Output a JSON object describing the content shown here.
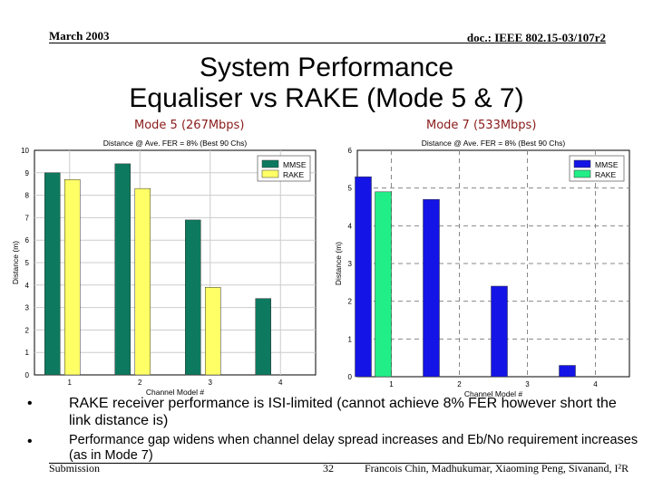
{
  "header": {
    "date": "March 2003",
    "doc": "doc.: IEEE 802.15-03/107r2"
  },
  "title": {
    "line1": "System Performance",
    "line2": "Equaliser vs RAKE (Mode 5 & 7)"
  },
  "mode_labels": {
    "left": "Mode 5 (267Mbps)",
    "right": "Mode 7 (533Mbps)"
  },
  "chart_data": [
    {
      "type": "bar",
      "title": "Distance @ Ave. FER = 8% (Best 90 Chs)",
      "xlabel": "Channel Model #",
      "ylabel": "Distance (m)",
      "categories": [
        "1",
        "2",
        "3",
        "4"
      ],
      "ylim": [
        0,
        10
      ],
      "yticks": [
        "0",
        "1",
        "2",
        "3",
        "4",
        "5",
        "6",
        "7",
        "8",
        "9",
        "10"
      ],
      "grid": true,
      "legend_position": "top-right",
      "series": [
        {
          "name": "MMSE",
          "values": [
            9.0,
            9.4,
            6.9,
            3.4
          ],
          "color": "#0d7a5f"
        },
        {
          "name": "RAKE",
          "values": [
            8.7,
            8.3,
            3.9,
            null
          ],
          "color": "#ffff66"
        }
      ]
    },
    {
      "type": "bar",
      "title": "Distance @ Ave. FER = 8% (Best 90 Chs)",
      "xlabel": "Channel Model #",
      "ylabel": "Distance (m)",
      "categories": [
        "1",
        "2",
        "3",
        "4"
      ],
      "ylim": [
        0,
        6
      ],
      "yticks": [
        "0",
        "1",
        "2",
        "3",
        "4",
        "5",
        "6"
      ],
      "grid": true,
      "legend_position": "top-right",
      "series": [
        {
          "name": "MMSE",
          "values": [
            5.3,
            4.7,
            2.4,
            0.3
          ],
          "color": "#1414e6"
        },
        {
          "name": "RAKE",
          "values": [
            4.9,
            null,
            null,
            null
          ],
          "color": "#22ee88"
        }
      ]
    }
  ],
  "bullets": [
    "RAKE receiver performance is ISI-limited (cannot achieve 8% FER however short the link distance is)",
    "Performance gap widens when channel delay spread increases and Eb/No requirement increases (as in Mode 7)"
  ],
  "bullet_marker": "•",
  "footer": {
    "left": "Submission",
    "page": "32",
    "authors": "Francois Chin, Madhukumar, Xiaoming Peng, Sivanand, I²R"
  }
}
